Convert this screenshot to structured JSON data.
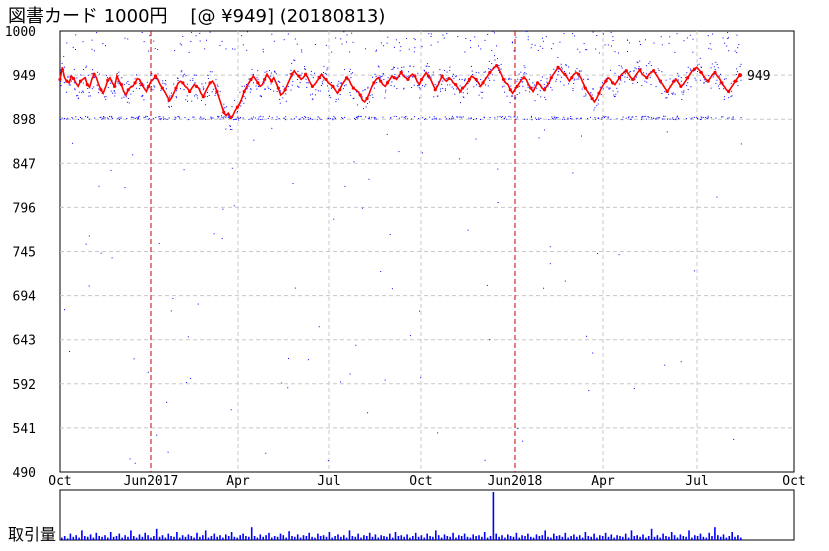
{
  "header": {
    "title": "図書カード 1000円",
    "price": "[@ ¥949]",
    "date": "(20180813)"
  },
  "volume_label": "取引量",
  "colors": {
    "price_line": "#ff0000",
    "scatter": "#0000ff",
    "volume": "#0000ff",
    "grid": "#c8c8c8",
    "year_marker": "#cc0000"
  },
  "chart_data": [
    {
      "type": "line",
      "title": "",
      "xlabel": "",
      "ylabel": "",
      "ylim": [
        490,
        1000
      ],
      "y_ticks": [
        "1000",
        "949",
        "898",
        "847",
        "796",
        "745",
        "694",
        "643",
        "592",
        "541",
        "490"
      ],
      "x_ticks": [
        "Oct",
        "Jun2017",
        "Apr",
        "Jul",
        "Oct",
        "Jun2018",
        "Apr",
        "Jul",
        "Oct"
      ],
      "grid": true,
      "last_price_label": "949",
      "series": [
        {
          "values": [
            944,
            958,
            946,
            942,
            940,
            948,
            945,
            940,
            936,
            942,
            944,
            946,
            938,
            935,
            944,
            950,
            946,
            938,
            932,
            928,
            935,
            943,
            946,
            940,
            936,
            948,
            942,
            938,
            930,
            926,
            932,
            935,
            936,
            940,
            945,
            944,
            938,
            934,
            930,
            936,
            942,
            944,
            948,
            944,
            938,
            934,
            930,
            925,
            920,
            922,
            928,
            934,
            940,
            942,
            940,
            936,
            934,
            930,
            934,
            938,
            936,
            934,
            928,
            924,
            930,
            935,
            940,
            942,
            938,
            930,
            922,
            914,
            906,
            902,
            905,
            900,
            902,
            908,
            912,
            916,
            922,
            930,
            935,
            940,
            944,
            948,
            944,
            940,
            936,
            938,
            944,
            950,
            946,
            942,
            946,
            940,
            934,
            926,
            928,
            932,
            938,
            944,
            950,
            954,
            950,
            948,
            944,
            946,
            950,
            946,
            940,
            936,
            938,
            942,
            946,
            950,
            946,
            944,
            940,
            938,
            936,
            932,
            928,
            932,
            938,
            942,
            946,
            944,
            938,
            934,
            932,
            930,
            926,
            920,
            918,
            922,
            928,
            935,
            940,
            944,
            946,
            942,
            938,
            936,
            940,
            944,
            948,
            946,
            944,
            948,
            952,
            948,
            946,
            944,
            948,
            950,
            948,
            942,
            938,
            944,
            948,
            952,
            948,
            944,
            938,
            932,
            936,
            942,
            948,
            944,
            942,
            945,
            944,
            940,
            938,
            934,
            930,
            934,
            936,
            940,
            944,
            948,
            946,
            944,
            940,
            936,
            940,
            944,
            948,
            952,
            955,
            958,
            960,
            956,
            950,
            944,
            940,
            938,
            932,
            928,
            932,
            936,
            940,
            944,
            946,
            944,
            938,
            934,
            930,
            935,
            940,
            938,
            934,
            932,
            936,
            940,
            946,
            950,
            954,
            958,
            956,
            952,
            950,
            946,
            942,
            946,
            950,
            952,
            950,
            946,
            940,
            934,
            930,
            926,
            922,
            918,
            922,
            928,
            934,
            938,
            942,
            946,
            944,
            940,
            938,
            942,
            946,
            950,
            952,
            954,
            950,
            946,
            944,
            948,
            952,
            955,
            950,
            948,
            946,
            950,
            952,
            954,
            950,
            946,
            942,
            938,
            934,
            930,
            934,
            938,
            942,
            944,
            940,
            936,
            938,
            942,
            946,
            950,
            954,
            956,
            958,
            955,
            952,
            948,
            944,
            942,
            946,
            950,
            952,
            948,
            945,
            940,
            936,
            932,
            930,
            934,
            938,
            942,
            946,
            949
          ]
        }
      ]
    },
    {
      "type": "bar",
      "title": "",
      "xlabel": "",
      "ylabel": "取引量",
      "values": [
        3,
        5,
        2,
        8,
        4,
        6,
        3,
        12,
        5,
        4,
        7,
        3,
        9,
        5,
        4,
        6,
        3,
        10,
        4,
        5,
        8,
        3,
        6,
        4,
        12,
        5,
        3,
        7,
        4,
        9,
        6,
        3,
        5,
        14,
        4,
        6,
        3,
        8,
        5,
        4,
        10,
        3,
        6,
        4,
        7,
        5,
        3,
        9,
        4,
        6,
        12,
        3,
        5,
        8,
        4,
        6,
        3,
        7,
        5,
        10,
        4,
        3,
        6,
        8,
        5,
        4,
        16,
        5,
        3,
        7,
        4,
        6,
        9,
        3,
        5,
        4,
        8,
        6,
        3,
        11,
        5,
        4,
        7,
        3,
        6,
        5,
        9,
        4,
        3,
        8,
        5,
        6,
        4,
        10,
        3,
        5,
        7,
        4,
        6,
        3,
        12,
        5,
        4,
        8,
        3,
        6,
        5,
        9,
        4,
        7,
        3,
        6,
        5,
        4,
        8,
        3,
        10,
        5,
        6,
        4,
        7,
        3,
        5,
        9,
        4,
        6,
        3,
        8,
        5,
        4,
        12,
        6,
        3,
        7,
        5,
        4,
        9,
        3,
        6,
        5,
        8,
        4,
        3,
        7,
        5,
        6,
        4,
        10,
        3,
        5,
        60,
        8,
        4,
        6,
        3,
        7,
        5,
        4,
        9,
        3,
        6,
        5,
        8,
        4,
        3,
        7,
        5,
        6,
        12,
        4,
        3,
        8,
        5,
        6,
        4,
        9,
        3,
        5,
        7,
        4,
        6,
        3,
        10,
        5,
        4,
        8,
        3,
        6,
        5,
        9,
        4,
        7,
        3,
        6,
        5,
        4,
        8,
        3,
        12,
        5,
        6,
        4,
        7,
        3,
        5,
        14,
        4,
        6,
        3,
        8,
        5,
        4,
        10,
        6,
        3,
        7,
        5,
        4,
        12,
        3,
        6,
        5,
        8,
        4,
        3,
        9,
        5,
        16,
        6,
        4,
        7,
        3,
        5,
        10,
        4,
        6,
        3
      ]
    }
  ]
}
